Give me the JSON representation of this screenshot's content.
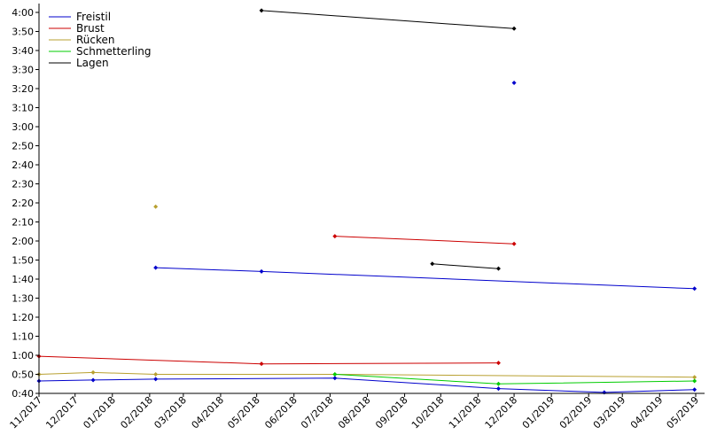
{
  "chart_data": {
    "type": "line",
    "title": "",
    "xlabel": "",
    "ylabel": "",
    "grid": false,
    "legend_position": "top-left",
    "xlim": [
      "2017-11-01",
      "2019-05-01"
    ],
    "ylim": [
      40,
      245
    ],
    "y_unit": "seconds",
    "x_ticks": [
      {
        "date": "2017-11-01",
        "label": "11/2017"
      },
      {
        "date": "2017-12-01",
        "label": "12/2017"
      },
      {
        "date": "2018-01-01",
        "label": "01/2018"
      },
      {
        "date": "2018-02-01",
        "label": "02/2018"
      },
      {
        "date": "2018-03-01",
        "label": "03/2018"
      },
      {
        "date": "2018-04-01",
        "label": "04/2018"
      },
      {
        "date": "2018-05-01",
        "label": "05/2018"
      },
      {
        "date": "2018-06-01",
        "label": "06/2018"
      },
      {
        "date": "2018-07-01",
        "label": "07/2018"
      },
      {
        "date": "2018-08-01",
        "label": "08/2018"
      },
      {
        "date": "2018-09-01",
        "label": "09/2018"
      },
      {
        "date": "2018-10-01",
        "label": "10/2018"
      },
      {
        "date": "2018-11-01",
        "label": "11/2018"
      },
      {
        "date": "2018-12-01",
        "label": "12/2018"
      },
      {
        "date": "2019-01-01",
        "label": "01/2019"
      },
      {
        "date": "2019-02-01",
        "label": "02/2019"
      },
      {
        "date": "2019-03-01",
        "label": "03/2019"
      },
      {
        "date": "2019-04-01",
        "label": "04/2019"
      },
      {
        "date": "2019-05-01",
        "label": "05/2019"
      }
    ],
    "y_ticks": [
      {
        "value": 40,
        "label": "0:40"
      },
      {
        "value": 50,
        "label": "0:50"
      },
      {
        "value": 60,
        "label": "1:00"
      },
      {
        "value": 70,
        "label": "1:10"
      },
      {
        "value": 80,
        "label": "1:20"
      },
      {
        "value": 90,
        "label": "1:30"
      },
      {
        "value": 100,
        "label": "1:40"
      },
      {
        "value": 110,
        "label": "1:50"
      },
      {
        "value": 120,
        "label": "2:00"
      },
      {
        "value": 130,
        "label": "2:10"
      },
      {
        "value": 140,
        "label": "2:20"
      },
      {
        "value": 150,
        "label": "2:30"
      },
      {
        "value": 160,
        "label": "2:40"
      },
      {
        "value": 170,
        "label": "2:50"
      },
      {
        "value": 180,
        "label": "3:00"
      },
      {
        "value": 190,
        "label": "3:10"
      },
      {
        "value": 200,
        "label": "3:20"
      },
      {
        "value": 210,
        "label": "3:30"
      },
      {
        "value": 220,
        "label": "3:40"
      },
      {
        "value": 230,
        "label": "3:50"
      },
      {
        "value": 240,
        "label": "4:00"
      }
    ],
    "series": [
      {
        "name": "Freistil",
        "color": "#0000cc",
        "lines": [
          [
            [
              "2017-11-01",
              46.5
            ],
            [
              "2017-12-16",
              47
            ],
            [
              "2018-02-06",
              47.5
            ],
            [
              "2018-07-05",
              48
            ],
            [
              "2018-11-18",
              42.5
            ],
            [
              "2019-02-14",
              40.5
            ],
            [
              "2019-04-30",
              42
            ]
          ],
          [
            [
              "2018-02-06",
              106
            ],
            [
              "2018-05-05",
              104
            ],
            [
              "2019-04-30",
              95
            ]
          ]
        ],
        "points": [
          [
            "2018-12-01",
            203
          ]
        ]
      },
      {
        "name": "Brust",
        "color": "#cc0000",
        "lines": [
          [
            [
              "2017-11-01",
              59.5
            ],
            [
              "2018-05-05",
              55.5
            ],
            [
              "2018-11-18",
              56
            ]
          ],
          [
            [
              "2018-07-05",
              122.5
            ],
            [
              "2018-12-01",
              118.5
            ]
          ]
        ],
        "points": []
      },
      {
        "name": "Rücken",
        "color": "#b8a030",
        "lines": [
          [
            [
              "2017-11-01",
              50
            ],
            [
              "2017-12-16",
              51
            ],
            [
              "2018-02-06",
              50
            ],
            [
              "2018-07-05",
              50
            ],
            [
              "2019-04-30",
              48.5
            ]
          ]
        ],
        "points": [
          [
            "2018-02-06",
            138
          ]
        ]
      },
      {
        "name": "Schmetterling",
        "color": "#00cc00",
        "lines": [
          [
            [
              "2018-07-05",
              50
            ],
            [
              "2018-11-18",
              45
            ],
            [
              "2019-04-30",
              46.5
            ]
          ]
        ],
        "points": []
      },
      {
        "name": "Lagen",
        "color": "#000000",
        "lines": [
          [
            [
              "2018-05-05",
              241
            ],
            [
              "2018-12-01",
              231.5
            ]
          ],
          [
            [
              "2018-09-24",
              108
            ],
            [
              "2018-11-18",
              105.5
            ]
          ]
        ],
        "points": []
      }
    ]
  }
}
